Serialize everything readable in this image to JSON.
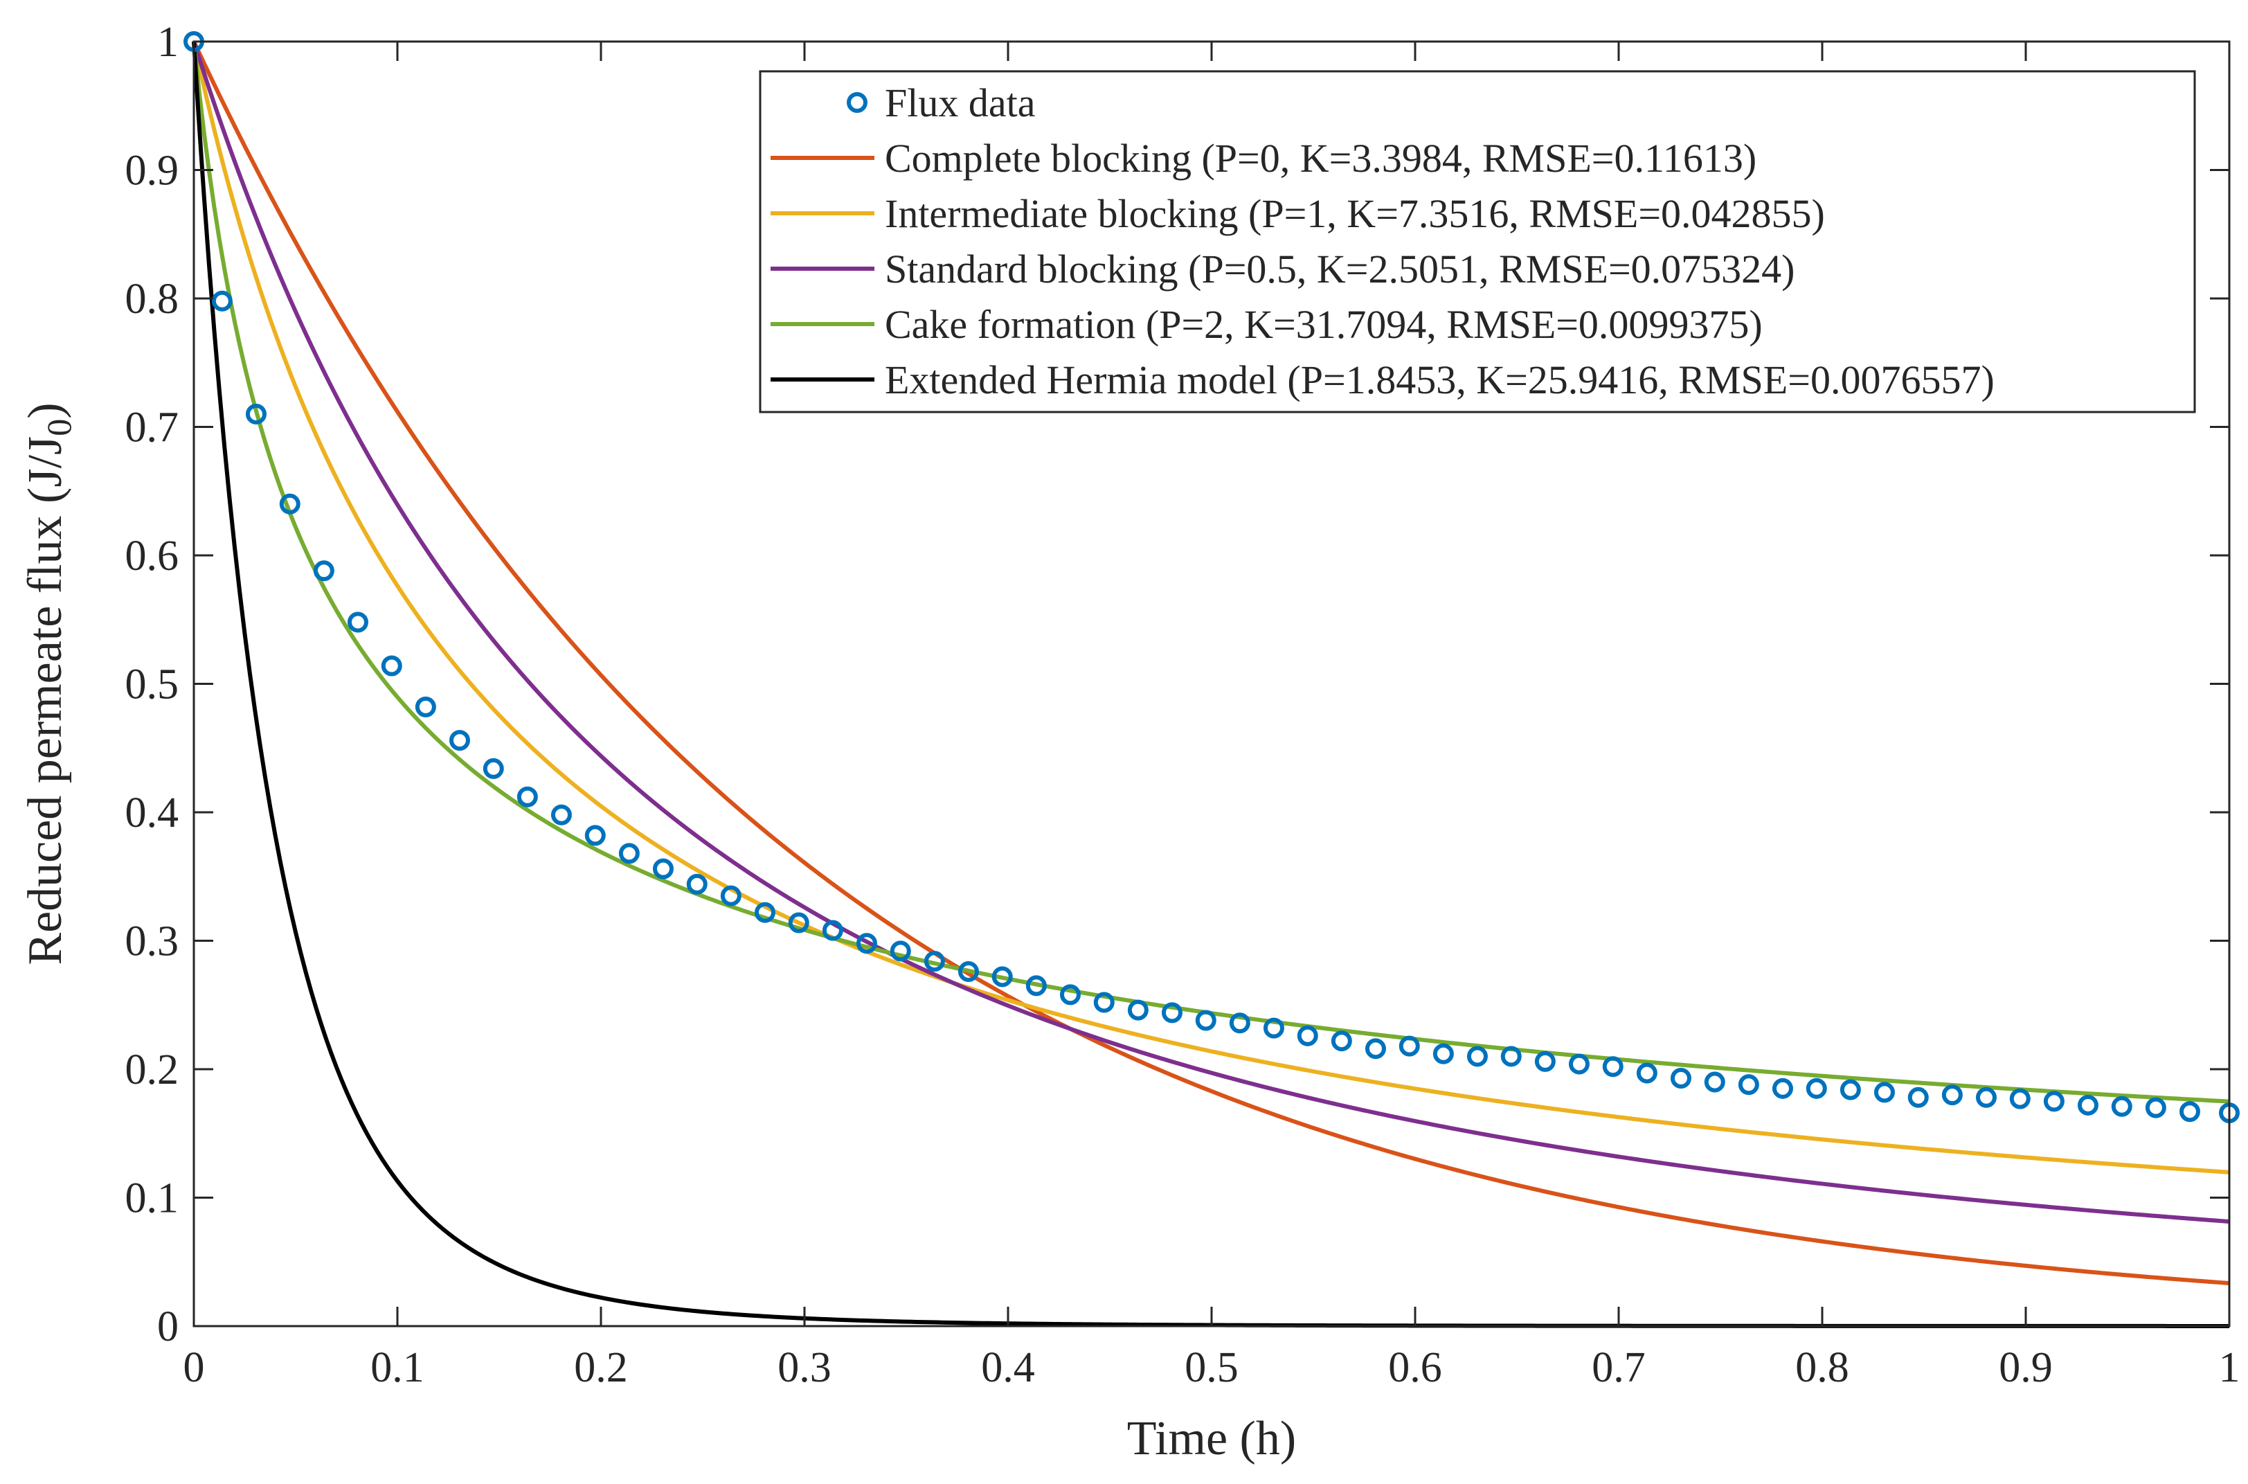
{
  "chart_data": {
    "type": "line",
    "xlabel": "Time (h)",
    "ylabel_main": "Reduced permeate flux (J/J",
    "ylabel_sub": "0",
    "ylabel_end": ")",
    "xlim": [
      0,
      1
    ],
    "ylim": [
      0,
      1
    ],
    "xticks": [
      "0",
      "0.1",
      "0.2",
      "0.3",
      "0.4",
      "0.5",
      "0.6",
      "0.7",
      "0.8",
      "0.9",
      "1"
    ],
    "yticks": [
      "0",
      "0.1",
      "0.2",
      "0.3",
      "0.4",
      "0.5",
      "0.6",
      "0.7",
      "0.8",
      "0.9",
      "1"
    ],
    "grid": false,
    "legend_position": "top-right",
    "scatter": {
      "name": "Flux data",
      "color": "#0072BD",
      "x": [
        0,
        0.0139,
        0.0306,
        0.0472,
        0.0639,
        0.0806,
        0.0972,
        0.1139,
        0.1306,
        0.1472,
        0.1639,
        0.1806,
        0.1972,
        0.2139,
        0.2306,
        0.2472,
        0.2639,
        0.2806,
        0.2972,
        0.3139,
        0.3306,
        0.3472,
        0.3639,
        0.3806,
        0.3972,
        0.4139,
        0.4306,
        0.4472,
        0.4639,
        0.4806,
        0.4972,
        0.5139,
        0.5306,
        0.5472,
        0.5639,
        0.5806,
        0.5972,
        0.6139,
        0.6306,
        0.6472,
        0.6639,
        0.6806,
        0.6972,
        0.7139,
        0.7306,
        0.7472,
        0.7639,
        0.7806,
        0.7972,
        0.8139,
        0.8306,
        0.8472,
        0.8639,
        0.8806,
        0.8972,
        0.9139,
        0.9306,
        0.9472,
        0.9639,
        0.9806,
        1.0
      ],
      "y": [
        1.0,
        0.798,
        0.71,
        0.64,
        0.588,
        0.548,
        0.514,
        0.482,
        0.456,
        0.434,
        0.412,
        0.398,
        0.382,
        0.368,
        0.356,
        0.344,
        0.335,
        0.322,
        0.314,
        0.308,
        0.298,
        0.292,
        0.284,
        0.276,
        0.272,
        0.265,
        0.258,
        0.252,
        0.246,
        0.244,
        0.238,
        0.236,
        0.232,
        0.226,
        0.222,
        0.216,
        0.218,
        0.212,
        0.21,
        0.21,
        0.206,
        0.204,
        0.202,
        0.197,
        0.193,
        0.19,
        0.188,
        0.185,
        0.185,
        0.184,
        0.182,
        0.178,
        0.18,
        0.178,
        0.177,
        0.175,
        0.172,
        0.171,
        0.17,
        0.167,
        0.166
      ]
    },
    "series": [
      {
        "name": "Complete blocking (P=0, K=3.3984, RMSE=0.11613)",
        "color": "#D95319",
        "model": "complete",
        "K": 3.3984
      },
      {
        "name": "Intermediate blocking (P=1, K=7.3516, RMSE=0.042855)",
        "color": "#EDB120",
        "model": "intermediate",
        "K": 7.3516
      },
      {
        "name": "Standard blocking (P=0.5, K=2.5051, RMSE=0.075324)",
        "color": "#7E2F8E",
        "model": "standard",
        "K": 2.5051
      },
      {
        "name": "Cake formation (P=2, K=31.7094, RMSE=0.0099375)",
        "color": "#77AC30",
        "model": "cake",
        "K": 31.7094
      },
      {
        "name": "Extended Hermia model (P=1.8453, K=25.9416, RMSE=0.0076557)",
        "color": "#000000",
        "model": "extended",
        "K": 25.9416,
        "P": 1.8453
      }
    ]
  }
}
